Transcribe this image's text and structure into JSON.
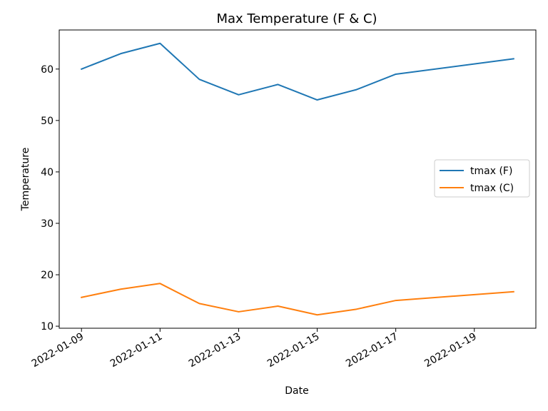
{
  "chart_data": {
    "type": "line",
    "title": "Max Temperature (F & C)",
    "xlabel": "Date",
    "ylabel": "Temperature",
    "x": [
      "2022-01-09",
      "2022-01-10",
      "2022-01-11",
      "2022-01-12",
      "2022-01-13",
      "2022-01-14",
      "2022-01-15",
      "2022-01-16",
      "2022-01-17",
      "2022-01-20"
    ],
    "x_ticks": [
      "2022-01-09",
      "2022-01-11",
      "2022-01-13",
      "2022-01-15",
      "2022-01-17",
      "2022-01-19"
    ],
    "xlim": [
      "2022-01-08T10:24",
      "2022-01-20T13:36"
    ],
    "y_ticks": [
      10,
      20,
      30,
      40,
      50,
      60
    ],
    "ylim": [
      9.6,
      67.6
    ],
    "grid": false,
    "legend_position": "center-right",
    "series": [
      {
        "name": "tmax (F)",
        "color": "#1f77b4",
        "values": [
          60,
          63,
          65,
          58,
          55,
          57,
          54,
          56,
          59,
          62
        ]
      },
      {
        "name": "tmax (C)",
        "color": "#ff7f0e",
        "values": [
          15.6,
          17.2,
          18.3,
          14.4,
          12.8,
          13.9,
          12.2,
          13.3,
          15.0,
          16.7
        ]
      }
    ]
  }
}
